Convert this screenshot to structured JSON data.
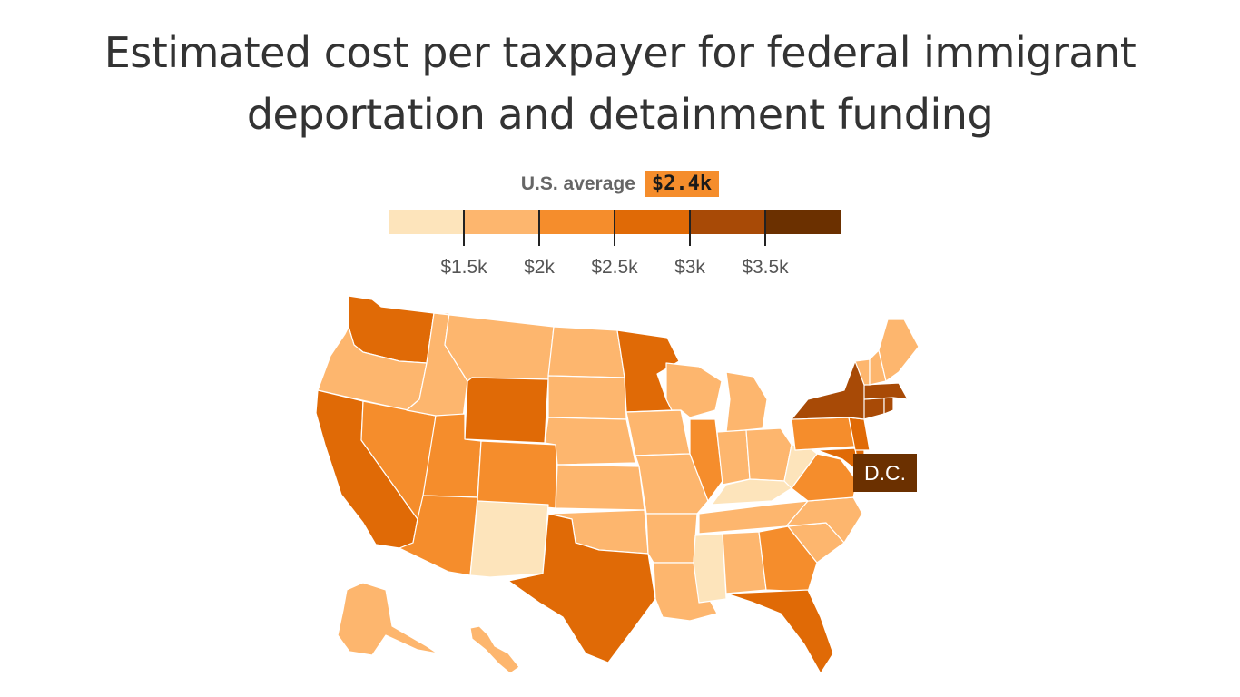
{
  "title": {
    "line1": "Estimated cost per taxpayer for federal immigrant",
    "line2": "deportation and detainment funding"
  },
  "legend": {
    "average_label": "U.S. average",
    "average_value": "$2.4k",
    "bins": [
      "#fde4bb",
      "#fdb66e",
      "#f58d2c",
      "#e06a06",
      "#a84a06",
      "#6b3000"
    ],
    "ticks": [
      "$1.5k",
      "$2k",
      "$2.5k",
      "$3k",
      "$3.5k"
    ]
  },
  "map": {
    "dc_label": "D.C.",
    "dc_color": "#6b3000"
  }
}
